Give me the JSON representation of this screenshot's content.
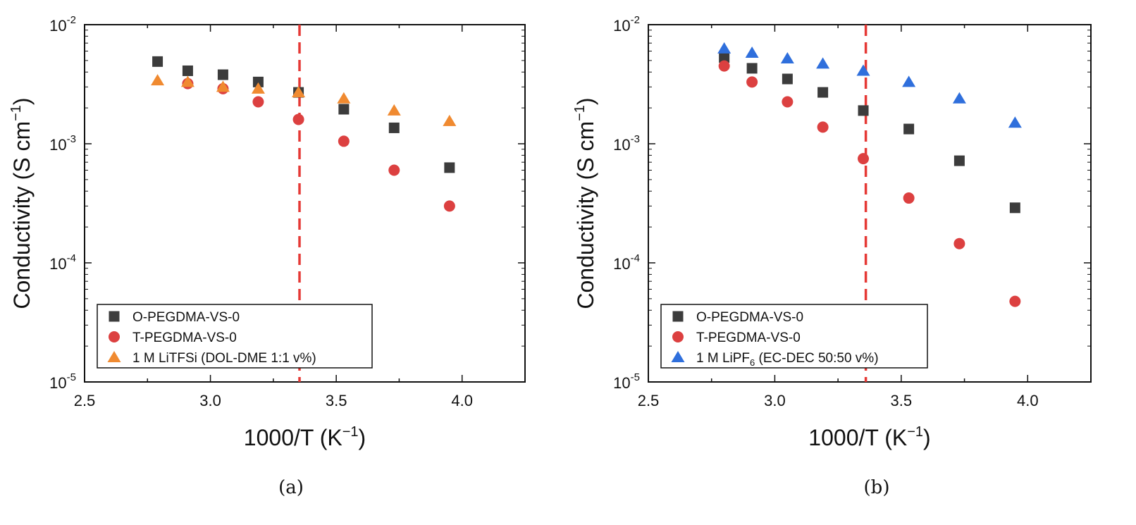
{
  "chart_data": [
    {
      "type": "scatter",
      "xlabel": "1000/T (K⁻¹)",
      "ylabel": "Conductivity (S cm⁻¹)",
      "xlim": [
        2.5,
        4.25
      ],
      "ylim": [
        1e-05,
        0.01
      ],
      "yscale": "log",
      "xticks": [
        "2.5",
        "3.0",
        "3.5",
        "4.0"
      ],
      "yticks": [
        {
          "base": "10",
          "exp": "-5"
        },
        {
          "base": "10",
          "exp": "-4"
        },
        {
          "base": "10",
          "exp": "-3"
        },
        {
          "base": "10",
          "exp": "-2"
        }
      ],
      "vline": {
        "x": 3.354,
        "color": "#e53935",
        "style": "dashed"
      },
      "legend_position": "bottom-left",
      "caption": "(a)",
      "series": [
        {
          "name": "O-PEGDMA-VS-0",
          "marker": "square",
          "color": "#3c3c3c",
          "x": [
            2.79,
            2.91,
            3.05,
            3.19,
            3.35,
            3.53,
            3.73,
            3.95
          ],
          "y": [
            0.0049,
            0.0041,
            0.0038,
            0.0033,
            0.0027,
            0.00195,
            0.00136,
            0.00063
          ]
        },
        {
          "name": "T-PEGDMA-VS-0",
          "marker": "circle",
          "color": "#dc4040",
          "x": [
            2.91,
            3.05,
            3.19,
            3.35,
            3.53,
            3.73,
            3.95
          ],
          "y": [
            0.0032,
            0.0029,
            0.00225,
            0.0016,
            0.00105,
            0.0006,
            0.0003
          ]
        },
        {
          "name": "1 M LiTFSi (DOL-DME 1:1 v%)",
          "marker": "triangle",
          "color": "#f08a30",
          "x": [
            2.79,
            2.91,
            3.05,
            3.19,
            3.35,
            3.53,
            3.73,
            3.95
          ],
          "y": [
            0.0034,
            0.0033,
            0.003,
            0.0029,
            0.0027,
            0.0024,
            0.0019,
            0.00155
          ]
        }
      ]
    },
    {
      "type": "scatter",
      "xlabel": "1000/T (K⁻¹)",
      "ylabel": "Conductivity (S cm⁻¹)",
      "xlim": [
        2.5,
        4.25
      ],
      "ylim": [
        1e-05,
        0.01
      ],
      "yscale": "log",
      "xticks": [
        "2.5",
        "3.0",
        "3.5",
        "4.0"
      ],
      "yticks": [
        {
          "base": "10",
          "exp": "-5"
        },
        {
          "base": "10",
          "exp": "-4"
        },
        {
          "base": "10",
          "exp": "-3"
        },
        {
          "base": "10",
          "exp": "-2"
        }
      ],
      "vline": {
        "x": 3.36,
        "color": "#e53935",
        "style": "dashed"
      },
      "legend_position": "bottom-left",
      "caption": "(b)",
      "series": [
        {
          "name": "O-PEGDMA-VS-0",
          "marker": "square",
          "color": "#3c3c3c",
          "x": [
            2.8,
            2.91,
            3.05,
            3.19,
            3.35,
            3.53,
            3.73,
            3.95
          ],
          "y": [
            0.0053,
            0.0043,
            0.0035,
            0.0027,
            0.0019,
            0.00133,
            0.00072,
            0.00029
          ]
        },
        {
          "name": "T-PEGDMA-VS-0",
          "marker": "circle",
          "color": "#dc4040",
          "x": [
            2.8,
            2.91,
            3.05,
            3.19,
            3.35,
            3.53,
            3.73,
            3.95
          ],
          "y": [
            0.0045,
            0.0033,
            0.00225,
            0.00138,
            0.00075,
            0.00035,
            0.000145,
            4.75e-05
          ]
        },
        {
          "name": "1 M LiPF6 (EC-DEC 50:50 v%)",
          "name_main": "1 M LiPF",
          "name_sub": "6",
          "name_rest": " (EC-DEC 50:50 v%)",
          "marker": "triangle",
          "color": "#2f6fdc",
          "x": [
            2.8,
            2.91,
            3.05,
            3.19,
            3.35,
            3.53,
            3.73,
            3.95
          ],
          "y": [
            0.0063,
            0.0058,
            0.0052,
            0.0047,
            0.0041,
            0.0033,
            0.0024,
            0.0015
          ]
        }
      ]
    }
  ]
}
